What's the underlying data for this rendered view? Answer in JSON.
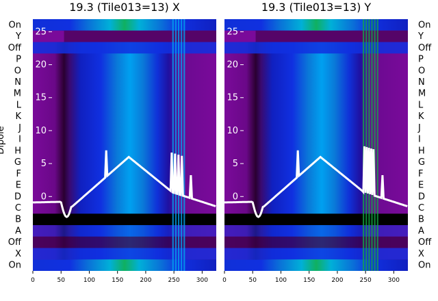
{
  "chart_data": [
    {
      "type": "heatmap",
      "title": "19.3 (Tile013=13) X",
      "xlim": [
        0,
        325
      ],
      "xticks": [
        0,
        50,
        100,
        150,
        200,
        250,
        300
      ],
      "rows": [
        "On",
        "Y",
        "Off",
        "P",
        "O",
        "N",
        "M",
        "L",
        "K",
        "J",
        "I",
        "H",
        "G",
        "F",
        "E",
        "D",
        "C",
        "B",
        "A",
        "Off",
        "X",
        "On"
      ],
      "overlay_yticks": [
        25,
        20,
        15,
        10,
        5,
        0
      ],
      "ylabel": "Dipole"
    },
    {
      "type": "heatmap",
      "title": "19.3 (Tile013=13) Y",
      "xlim": [
        0,
        325
      ],
      "xticks": [
        0,
        50,
        100,
        150,
        200,
        250,
        300
      ],
      "rows": [
        "On",
        "Y",
        "Off",
        "P",
        "O",
        "N",
        "M",
        "L",
        "K",
        "J",
        "I",
        "H",
        "G",
        "F",
        "E",
        "D",
        "C",
        "B",
        "A",
        "Off",
        "X",
        "On"
      ],
      "overlay_yticks": [
        25,
        20,
        15,
        10,
        5,
        0
      ]
    }
  ],
  "colors": {
    "purple": "#7a0a9a",
    "dark": "#3c0048",
    "blue": "#1030e0",
    "cyan": "#00a8f0",
    "green": "#10b040",
    "line": "#ffffff",
    "band": "#000000"
  }
}
